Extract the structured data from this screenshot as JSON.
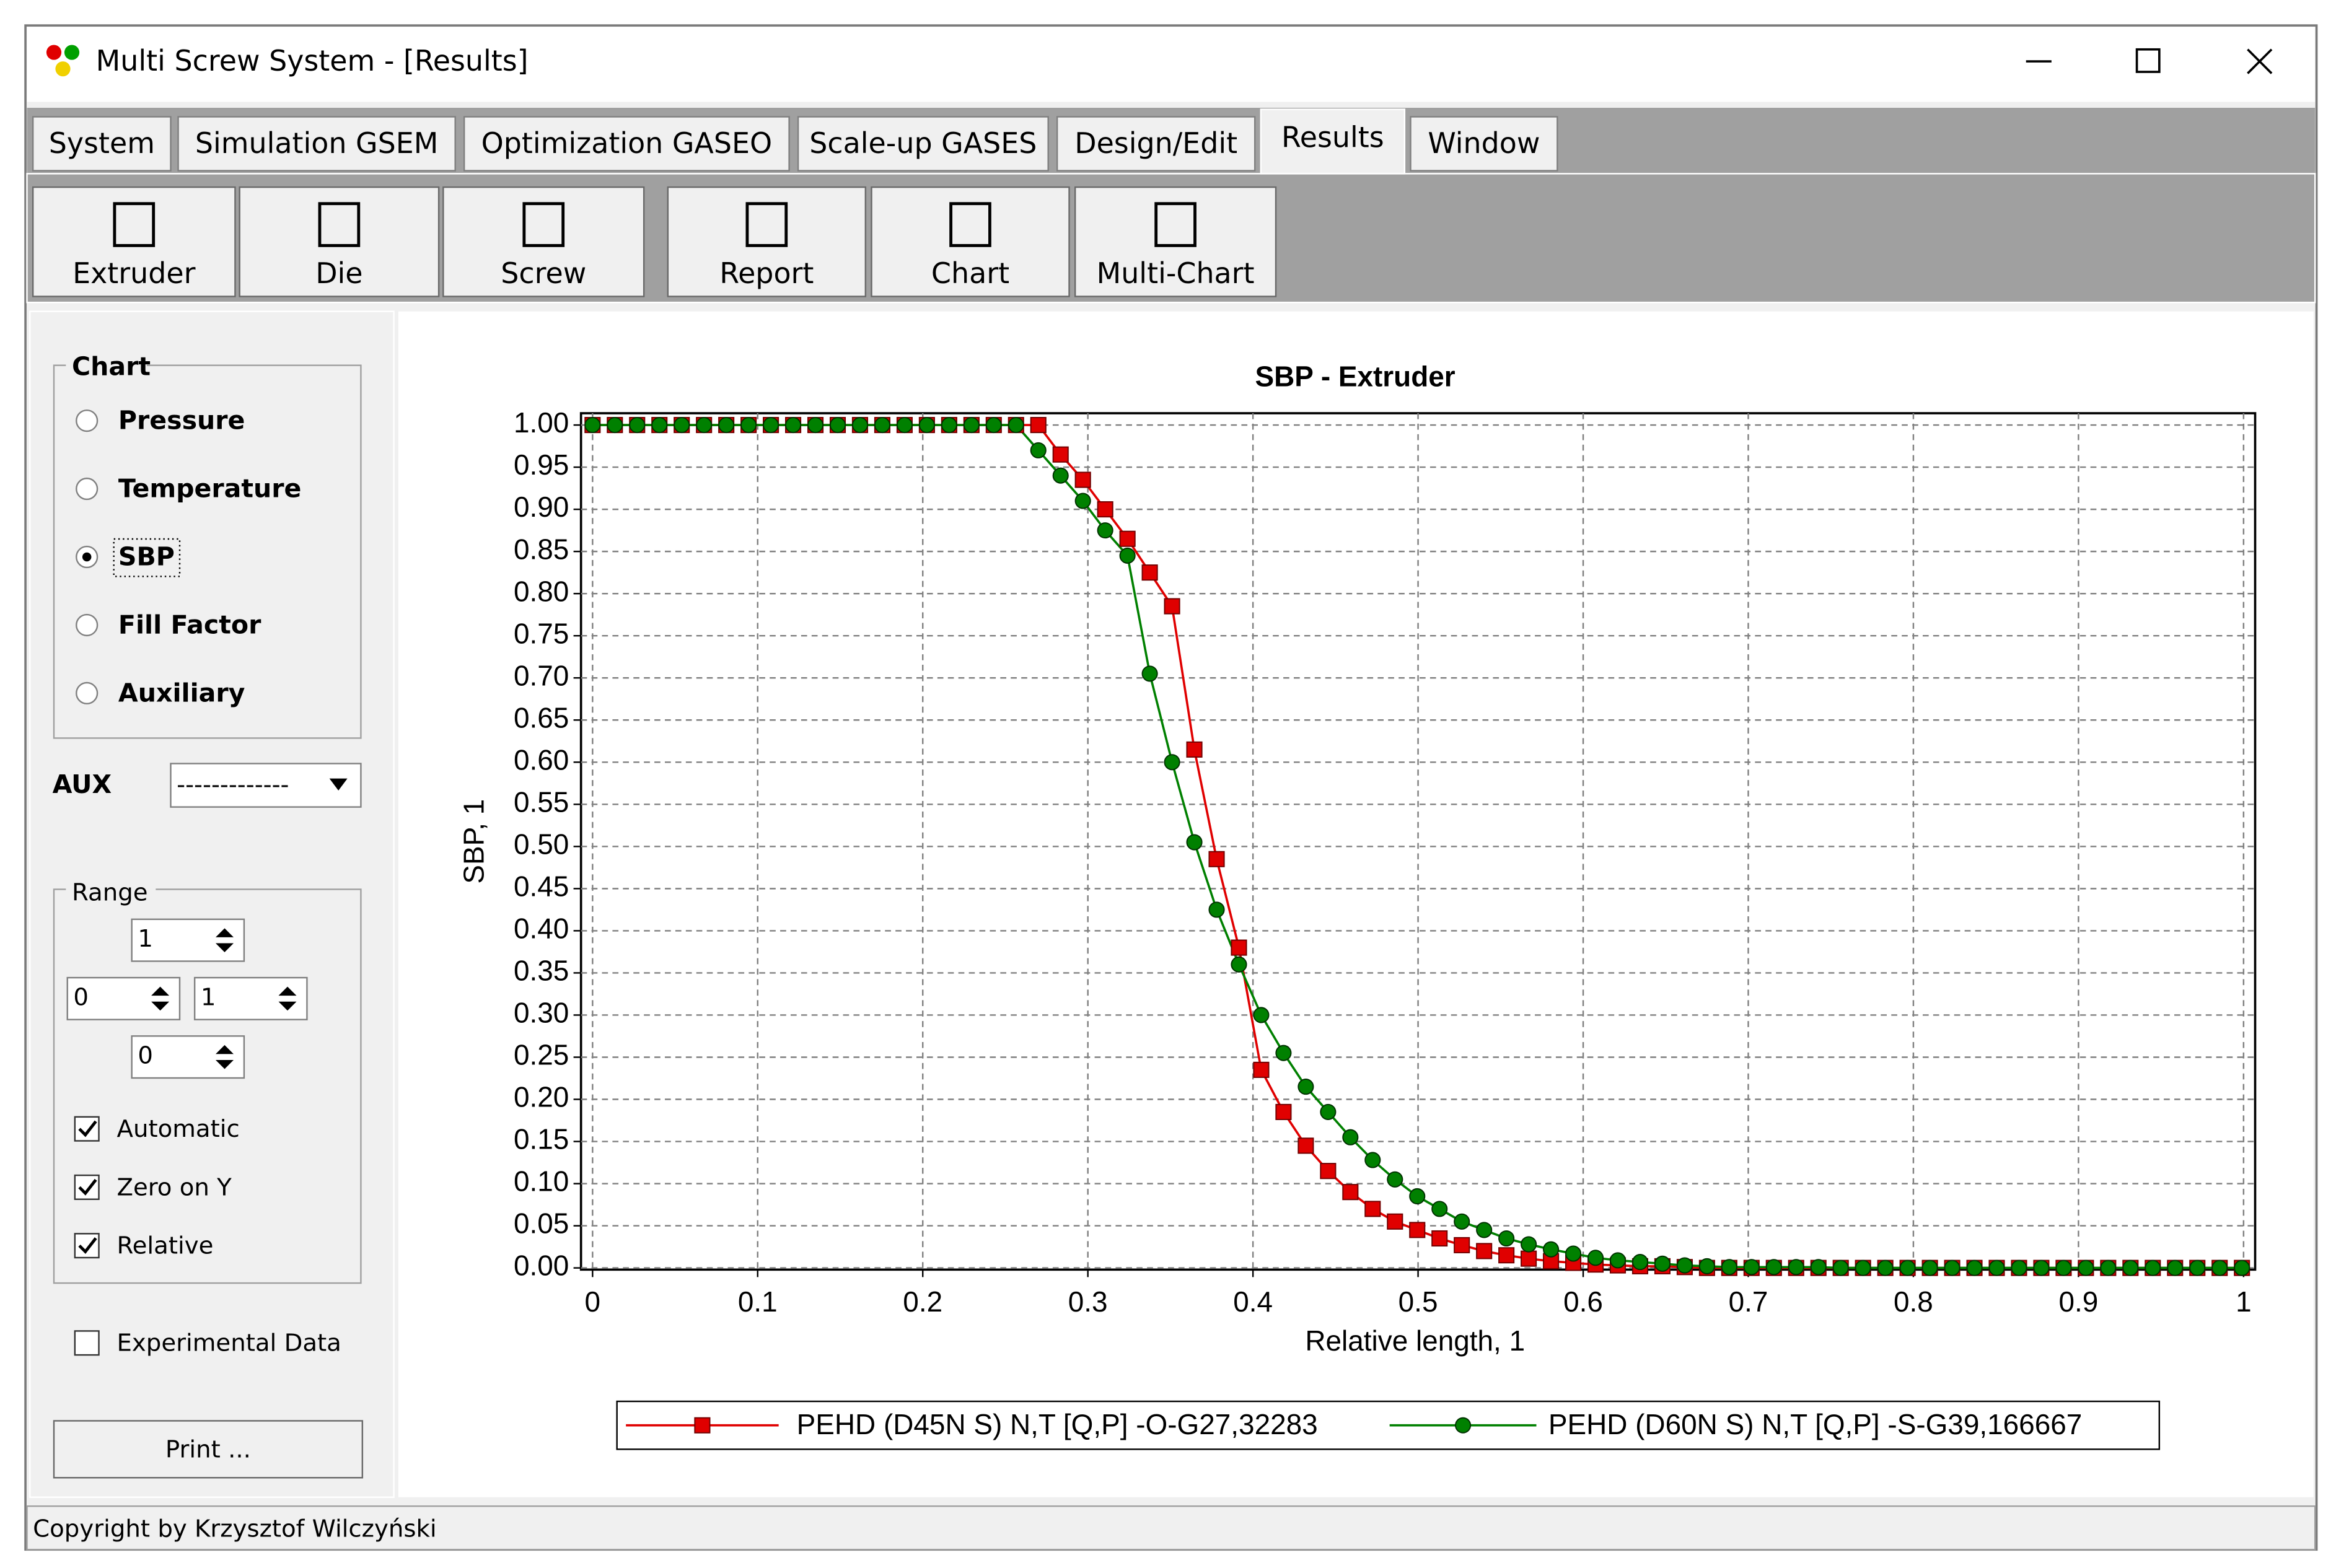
{
  "window": {
    "title": "Multi Screw System - [Results]"
  },
  "tabs": [
    {
      "label": "System",
      "active": false
    },
    {
      "label": "Simulation GSEM",
      "active": false
    },
    {
      "label": "Optimization GASEO",
      "active": false
    },
    {
      "label": "Scale-up GASES",
      "active": false
    },
    {
      "label": "Design/Edit",
      "active": false
    },
    {
      "label": "Results",
      "active": true
    },
    {
      "label": "Window",
      "active": false
    }
  ],
  "toolbar": [
    "Extruder",
    "Die",
    "Screw",
    "Report",
    "Chart",
    "Multi-Chart"
  ],
  "panel": {
    "chart_group": "Chart",
    "options": [
      {
        "label": "Pressure",
        "checked": false
      },
      {
        "label": "Temperature",
        "checked": false
      },
      {
        "label": "SBP",
        "checked": true
      },
      {
        "label": "Fill Factor",
        "checked": false
      },
      {
        "label": "Auxiliary",
        "checked": false
      }
    ],
    "aux_label": "AUX",
    "aux_value": "-------------",
    "range_group": "Range",
    "spinners": [
      1,
      0,
      1,
      0
    ],
    "checkboxes": [
      {
        "label": "Automatic",
        "checked": true
      },
      {
        "label": "Zero on Y",
        "checked": true
      },
      {
        "label": "Relative",
        "checked": true
      }
    ],
    "experimental": {
      "label": "Experimental Data",
      "checked": false
    },
    "print": "Print ..."
  },
  "status": "Copyright by Krzysztof Wilczyński",
  "chart_data": {
    "type": "line",
    "title": "SBP - Extruder",
    "xlabel": "Relative length, 1",
    "ylabel": "SBP, 1",
    "x": [
      0,
      0.0135,
      0.027,
      0.0405,
      0.054,
      0.0675,
      0.081,
      0.0945,
      0.108,
      0.1215,
      0.135,
      0.1485,
      0.162,
      0.1755,
      0.189,
      0.2025,
      0.216,
      0.2295,
      0.243,
      0.2565,
      0.27,
      0.2835,
      0.297,
      0.3105,
      0.324,
      0.3375,
      0.351,
      0.3645,
      0.378,
      0.3915,
      0.405,
      0.4185,
      0.432,
      0.4455,
      0.459,
      0.4725,
      0.486,
      0.4995,
      0.513,
      0.5265,
      0.54,
      0.5535,
      0.567,
      0.5805,
      0.594,
      0.6075,
      0.621,
      0.6345,
      0.648,
      0.6615,
      0.675,
      0.6885,
      0.702,
      0.7155,
      0.729,
      0.7425,
      0.756,
      0.7695,
      0.783,
      0.7965,
      0.81,
      0.8235,
      0.837,
      0.8505,
      0.864,
      0.8775,
      0.891,
      0.9045,
      0.918,
      0.9315,
      0.945,
      0.9585,
      0.972,
      0.9855,
      0.999
    ],
    "series": [
      {
        "name": "PEHD (D45N S) N,T [Q,P] -O-G27,32283",
        "color": "#e00000",
        "marker": "square",
        "values": [
          1,
          1,
          1,
          1,
          1,
          1,
          1,
          1,
          1,
          1,
          1,
          1,
          1,
          1,
          1,
          1,
          1,
          1,
          1,
          1,
          1,
          0.965,
          0.935,
          0.9,
          0.865,
          0.825,
          0.785,
          0.615,
          0.485,
          0.38,
          0.235,
          0.185,
          0.145,
          0.115,
          0.09,
          0.07,
          0.055,
          0.045,
          0.035,
          0.027,
          0.02,
          0.015,
          0.011,
          0.008,
          0.006,
          0.004,
          0.003,
          0.002,
          0.002,
          0.001,
          0,
          0,
          0,
          0,
          0,
          0,
          0,
          0,
          0,
          0,
          0,
          0,
          0,
          0,
          0,
          0,
          0,
          0,
          0,
          0,
          0,
          0,
          0,
          0,
          0
        ]
      },
      {
        "name": "PEHD (D60N S) N,T [Q,P] -S-G39,166667",
        "color": "#008000",
        "marker": "circle",
        "values": [
          1,
          1,
          1,
          1,
          1,
          1,
          1,
          1,
          1,
          1,
          1,
          1,
          1,
          1,
          1,
          1,
          1,
          1,
          1,
          1,
          0.97,
          0.94,
          0.91,
          0.875,
          0.845,
          0.705,
          0.6,
          0.505,
          0.425,
          0.36,
          0.3,
          0.255,
          0.215,
          0.185,
          0.155,
          0.128,
          0.105,
          0.085,
          0.07,
          0.055,
          0.045,
          0.035,
          0.028,
          0.022,
          0.017,
          0.012,
          0.009,
          0.007,
          0.005,
          0.003,
          0.002,
          0.001,
          0.001,
          0.001,
          0.001,
          0.001,
          0,
          0,
          0,
          0,
          0,
          0,
          0,
          0,
          0,
          0,
          0,
          0,
          0,
          0,
          0,
          0,
          0,
          0,
          0
        ]
      }
    ],
    "xlim": [
      -0.007,
      1.007
    ],
    "ylim": [
      -0.002,
      1.014
    ],
    "xticks": [
      0,
      0.1,
      0.2,
      0.3,
      0.4,
      0.5,
      0.6,
      0.7,
      0.8,
      0.9,
      1
    ],
    "yticks": [
      {
        "value": 0,
        "label": "0.00"
      },
      {
        "value": 0.05,
        "label": "0.05"
      },
      {
        "value": 0.1,
        "label": "0.10"
      },
      {
        "value": 0.15,
        "label": "0.15"
      },
      {
        "value": 0.2,
        "label": "0.20"
      },
      {
        "value": 0.25,
        "label": "0.25"
      },
      {
        "value": 0.3,
        "label": "0.30"
      },
      {
        "value": 0.35,
        "label": "0.35"
      },
      {
        "value": 0.4,
        "label": "0.40"
      },
      {
        "value": 0.45,
        "label": "0.45"
      },
      {
        "value": 0.5,
        "label": "0.50"
      },
      {
        "value": 0.55,
        "label": "0.55"
      },
      {
        "value": 0.6,
        "label": "0.60"
      },
      {
        "value": 0.65,
        "label": "0.65"
      },
      {
        "value": 0.7,
        "label": "0.70"
      },
      {
        "value": 0.75,
        "label": "0.75"
      },
      {
        "value": 0.8,
        "label": "0.80"
      },
      {
        "value": 0.85,
        "label": "0.85"
      },
      {
        "value": 0.9,
        "label": "0.90"
      },
      {
        "value": 0.95,
        "label": "0.95"
      },
      {
        "value": 1,
        "label": "1.00"
      }
    ],
    "grid": true,
    "legend": "bottom"
  }
}
